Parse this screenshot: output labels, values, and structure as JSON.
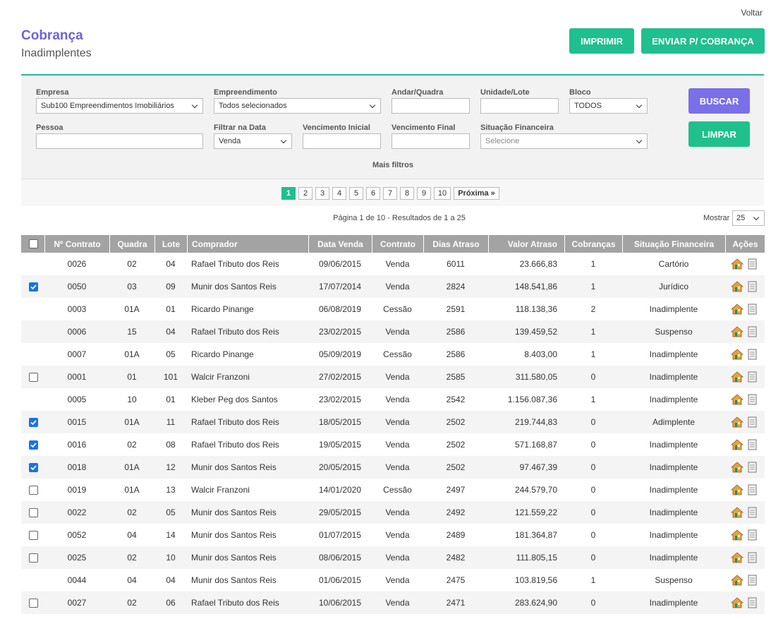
{
  "header": {
    "back": "Voltar",
    "title": "Cobrança",
    "subtitle": "Inadimplentes",
    "buttons": [
      "IMPRIMIR",
      "ENVIAR P/ COBRANÇA"
    ]
  },
  "filters": {
    "fields": [
      {
        "label": "Empresa",
        "value": "Sub100 Empreendimentos Imobiliários",
        "select": true
      },
      {
        "label": "Empreendimento",
        "value": "Todos selecionados",
        "select": true
      },
      {
        "label": "Andar/Quadra"
      },
      {
        "label": "Unidade/Lote"
      },
      {
        "label": "Bloco",
        "value": "TODOS",
        "select": true
      },
      {
        "label": "Pessoa"
      },
      {
        "label": "Filtrar na Data",
        "value": "Venda",
        "select": true
      },
      {
        "label": "Vencimento Inicial"
      },
      {
        "label": "Vencimento Final"
      },
      {
        "label": "Situação Financeira",
        "placeholder": "Selecione",
        "select": true
      }
    ],
    "search": "BUSCAR",
    "clear": "LIMPAR",
    "more": "Mais filtros"
  },
  "pagination": {
    "pages": [
      1,
      2,
      3,
      4,
      5,
      6,
      7,
      8,
      9,
      10
    ],
    "current": 1,
    "next": "Próxima »",
    "summary": "Página 1 de 10 - Resultados de 1 a 25",
    "show_label": "Mostrar",
    "show_value": 25
  },
  "table": {
    "columns": [
      "Nº Contrato",
      "Quadra",
      "Lote",
      "Comprador",
      "Data Venda",
      "Contrato",
      "Dias Atraso",
      "Valor Atraso",
      "Cobranças",
      "Situação Financeira",
      "Ações"
    ],
    "rows": [
      {
        "check": "none",
        "cells": [
          "0026",
          "02",
          "04",
          "Rafael Tributo dos Reis",
          "09/06/2015",
          "Venda",
          "6011",
          "23.666,83",
          "1",
          "Cartório"
        ]
      },
      {
        "check": "checked",
        "cells": [
          "0050",
          "03",
          "09",
          "Munir dos Santos Reis",
          "17/07/2014",
          "Venda",
          "2824",
          "148.541,86",
          "1",
          "Jurídico"
        ]
      },
      {
        "check": "none",
        "cells": [
          "0003",
          "01A",
          "01",
          "Ricardo Pinange",
          "06/08/2019",
          "Cessão",
          "2591",
          "118.138,36",
          "2",
          "Inadimplente"
        ]
      },
      {
        "check": "none",
        "cells": [
          "0006",
          "15",
          "04",
          "Rafael Tributo dos Reis",
          "23/02/2015",
          "Venda",
          "2586",
          "139.459,52",
          "1",
          "Suspenso"
        ]
      },
      {
        "check": "none",
        "cells": [
          "0007",
          "01A",
          "05",
          "Ricardo Pinange",
          "05/09/2019",
          "Cessão",
          "2586",
          "8.403,00",
          "1",
          "Inadimplente"
        ]
      },
      {
        "check": "unchecked",
        "cells": [
          "0001",
          "01",
          "101",
          "Walcir Franzoni",
          "27/02/2015",
          "Venda",
          "2585",
          "311.580,05",
          "0",
          "Inadimplente"
        ]
      },
      {
        "check": "none",
        "cells": [
          "0005",
          "10",
          "01",
          "Kleber Peg dos Santos",
          "23/02/2015",
          "Venda",
          "2542",
          "1.156.087,36",
          "1",
          "Inadimplente"
        ]
      },
      {
        "check": "checked",
        "cells": [
          "0015",
          "01A",
          "11",
          "Rafael Tributo dos Reis",
          "18/05/2015",
          "Venda",
          "2502",
          "219.744,83",
          "0",
          "Adimplente"
        ]
      },
      {
        "check": "checked",
        "cells": [
          "0016",
          "02",
          "08",
          "Rafael Tributo dos Reis",
          "19/05/2015",
          "Venda",
          "2502",
          "571.168,87",
          "0",
          "Inadimplente"
        ]
      },
      {
        "check": "checked",
        "cells": [
          "0018",
          "01A",
          "12",
          "Munir dos Santos Reis",
          "20/05/2015",
          "Venda",
          "2502",
          "97.467,39",
          "0",
          "Inadimplente"
        ]
      },
      {
        "check": "unchecked",
        "cells": [
          "0019",
          "01A",
          "13",
          "Walcir Franzoni",
          "14/01/2020",
          "Cessão",
          "2497",
          "244.579,70",
          "0",
          "Inadimplente"
        ]
      },
      {
        "check": "unchecked",
        "cells": [
          "0022",
          "02",
          "05",
          "Munir dos Santos Reis",
          "29/05/2015",
          "Venda",
          "2492",
          "121.559,22",
          "0",
          "Inadimplente"
        ]
      },
      {
        "check": "unchecked",
        "cells": [
          "0052",
          "04",
          "14",
          "Munir dos Santos Reis",
          "01/07/2015",
          "Venda",
          "2489",
          "181.364,87",
          "0",
          "Inadimplente"
        ]
      },
      {
        "check": "unchecked",
        "cells": [
          "0025",
          "02",
          "10",
          "Munir dos Santos Reis",
          "08/06/2015",
          "Venda",
          "2482",
          "111.805,15",
          "0",
          "Inadimplente"
        ]
      },
      {
        "check": "none",
        "cells": [
          "0044",
          "04",
          "04",
          "Munir dos Santos Reis",
          "01/06/2015",
          "Venda",
          "2475",
          "103.819,56",
          "1",
          "Suspenso"
        ]
      },
      {
        "check": "unchecked",
        "cells": [
          "0027",
          "02",
          "06",
          "Rafael Tributo dos Reis",
          "10/06/2015",
          "Venda",
          "2471",
          "283.624,90",
          "0",
          "Inadimplente"
        ]
      }
    ]
  }
}
